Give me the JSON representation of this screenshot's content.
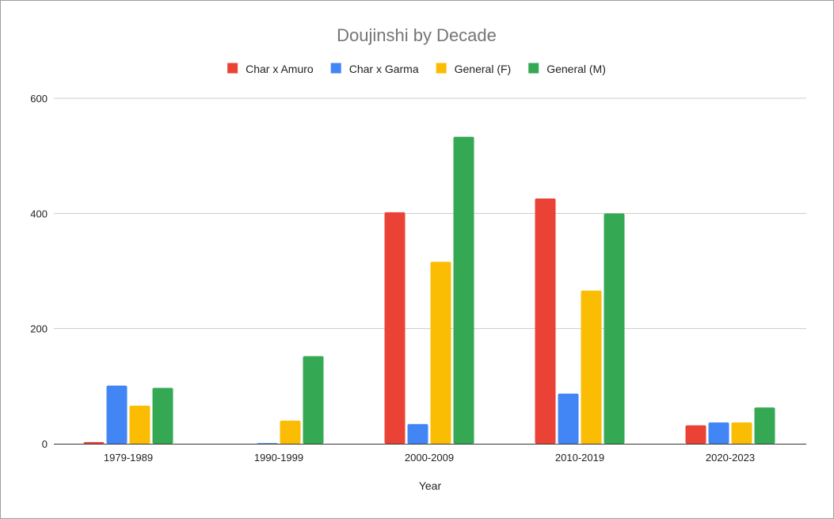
{
  "chart_data": {
    "type": "bar",
    "title": "Doujinshi by Decade",
    "xlabel": "Year",
    "ylabel": "",
    "categories": [
      "1979-1989",
      "1990-1999",
      "2000-2009",
      "2010-2019",
      "2020-2023"
    ],
    "series": [
      {
        "name": "Char x Amuro",
        "color": "#ea4335",
        "values": [
          3,
          0,
          402,
          426,
          32
        ]
      },
      {
        "name": "Char x Garma",
        "color": "#4285f4",
        "values": [
          101,
          1,
          34,
          87,
          37
        ]
      },
      {
        "name": "General (F)",
        "color": "#fbbc04",
        "values": [
          66,
          40,
          316,
          266,
          37
        ]
      },
      {
        "name": "General (M)",
        "color": "#34a853",
        "values": [
          97,
          152,
          533,
          400,
          63
        ]
      }
    ],
    "ylim": [
      0,
      600
    ],
    "yticks": [
      "0",
      "200",
      "400",
      "600"
    ],
    "grid": true,
    "legend": "top"
  }
}
